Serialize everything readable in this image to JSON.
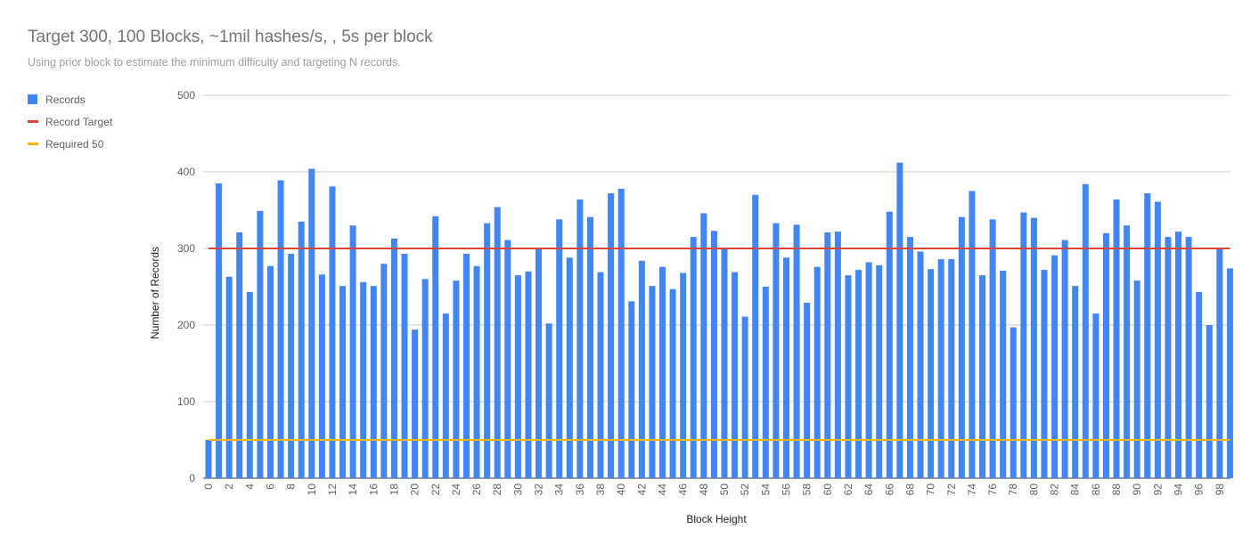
{
  "chart_data": {
    "type": "bar",
    "title": "Target 300, 100 Blocks, ~1mil hashes/s, , 5s per block",
    "subtitle": "Using prior block to estimate the minimum difficulty and targeting N records.",
    "xlabel": "Block Height",
    "ylabel": "Number of Records",
    "ylim": [
      0,
      500
    ],
    "yticks": [
      0,
      100,
      200,
      300,
      400,
      500
    ],
    "legend_position": "left",
    "x": [
      0,
      1,
      2,
      3,
      4,
      5,
      6,
      7,
      8,
      9,
      10,
      11,
      12,
      13,
      14,
      15,
      16,
      17,
      18,
      19,
      20,
      21,
      22,
      23,
      24,
      25,
      26,
      27,
      28,
      29,
      30,
      31,
      32,
      33,
      34,
      35,
      36,
      37,
      38,
      39,
      40,
      41,
      42,
      43,
      44,
      45,
      46,
      47,
      48,
      49,
      50,
      51,
      52,
      53,
      54,
      55,
      56,
      57,
      58,
      59,
      60,
      61,
      62,
      63,
      64,
      65,
      66,
      67,
      68,
      69,
      70,
      71,
      72,
      73,
      74,
      75,
      76,
      77,
      78,
      79,
      80,
      81,
      82,
      83,
      84,
      85,
      86,
      87,
      88,
      89,
      90,
      91,
      92,
      93,
      94,
      95,
      96,
      97,
      98,
      99
    ],
    "xtick_labels": [
      "0",
      "2",
      "4",
      "6",
      "8",
      "10",
      "12",
      "14",
      "16",
      "18",
      "20",
      "22",
      "24",
      "26",
      "28",
      "30",
      "32",
      "34",
      "36",
      "38",
      "40",
      "42",
      "44",
      "46",
      "48",
      "50",
      "52",
      "54",
      "56",
      "58",
      "60",
      "62",
      "64",
      "66",
      "68",
      "70",
      "72",
      "74",
      "76",
      "78",
      "80",
      "82",
      "84",
      "86",
      "88",
      "90",
      "92",
      "94",
      "96",
      "98"
    ],
    "series": [
      {
        "name": "Records",
        "type": "bar",
        "color": "#4285f4",
        "values": [
          50,
          385,
          263,
          321,
          243,
          349,
          277,
          389,
          293,
          335,
          404,
          266,
          381,
          251,
          330,
          256,
          251,
          280,
          313,
          293,
          194,
          260,
          342,
          215,
          258,
          293,
          277,
          333,
          354,
          311,
          265,
          270,
          301,
          202,
          338,
          288,
          364,
          341,
          269,
          372,
          378,
          231,
          284,
          251,
          276,
          247,
          268,
          315,
          346,
          323,
          300,
          269,
          211,
          370,
          250,
          333,
          288,
          331,
          229,
          276,
          321,
          322,
          265,
          272,
          282,
          278,
          348,
          412,
          315,
          296,
          273,
          286,
          286,
          341,
          375,
          265,
          338,
          271,
          197,
          347,
          340,
          272,
          291,
          311,
          251,
          384,
          215,
          320,
          364,
          330,
          258,
          372,
          361,
          315,
          322,
          315,
          243,
          200,
          299,
          274
        ]
      },
      {
        "name": "Record Target",
        "type": "line",
        "color": "#db4437",
        "value": 300
      },
      {
        "name": "Required 50",
        "type": "line",
        "color": "#f4b400",
        "value": 50
      }
    ]
  }
}
